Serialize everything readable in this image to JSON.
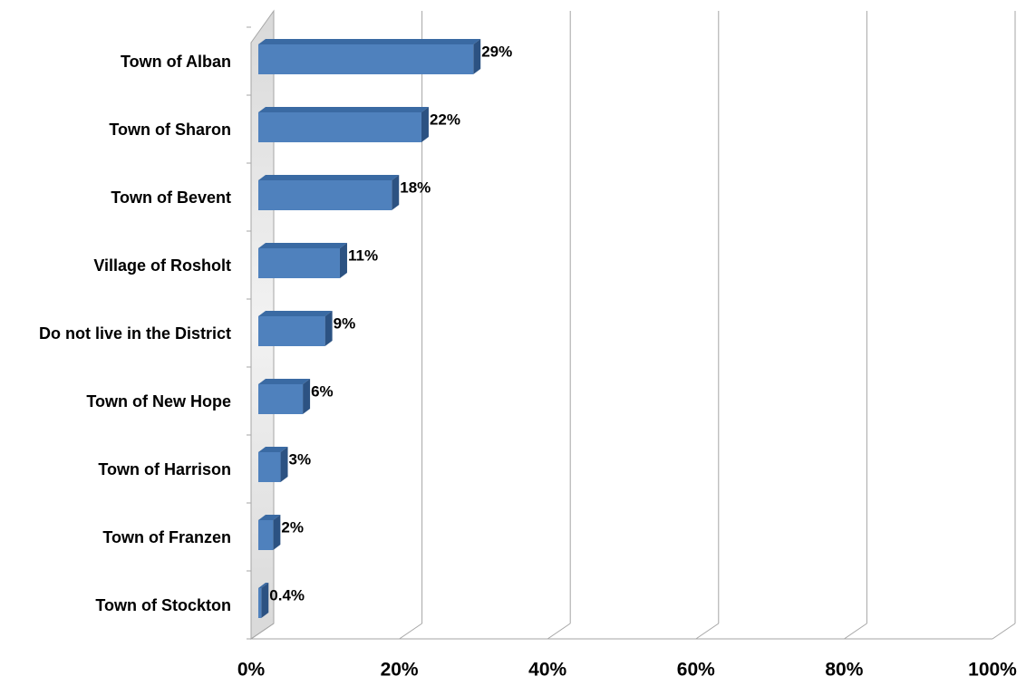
{
  "chart_data": {
    "type": "bar",
    "orientation": "horizontal",
    "style": "3d",
    "categories": [
      "Town of Alban",
      "Town of Sharon",
      "Town of Bevent",
      "Village of Rosholt",
      "Do not live in the District",
      "Town of New Hope",
      "Town of Harrison",
      "Town of Franzen",
      "Town of Stockton"
    ],
    "values": [
      29,
      22,
      18,
      11,
      9,
      6,
      3,
      2,
      0.4
    ],
    "data_labels": [
      "29%",
      "22%",
      "18%",
      "11%",
      "9%",
      "6%",
      "3%",
      "2%",
      "0.4%"
    ],
    "xlim": [
      0,
      100
    ],
    "x_ticks": [
      0,
      20,
      40,
      60,
      80,
      100
    ],
    "x_tick_labels": [
      "0%",
      "20%",
      "40%",
      "60%",
      "80%",
      "100%"
    ],
    "title": "",
    "xlabel": "",
    "ylabel": "",
    "grid": true,
    "legend": "none",
    "colors": {
      "bar_front": "#4f81bd",
      "bar_top": "#3a6aa3",
      "bar_side": "#2c5282",
      "gridline": "#a6a6a6",
      "text": "#000000"
    }
  }
}
